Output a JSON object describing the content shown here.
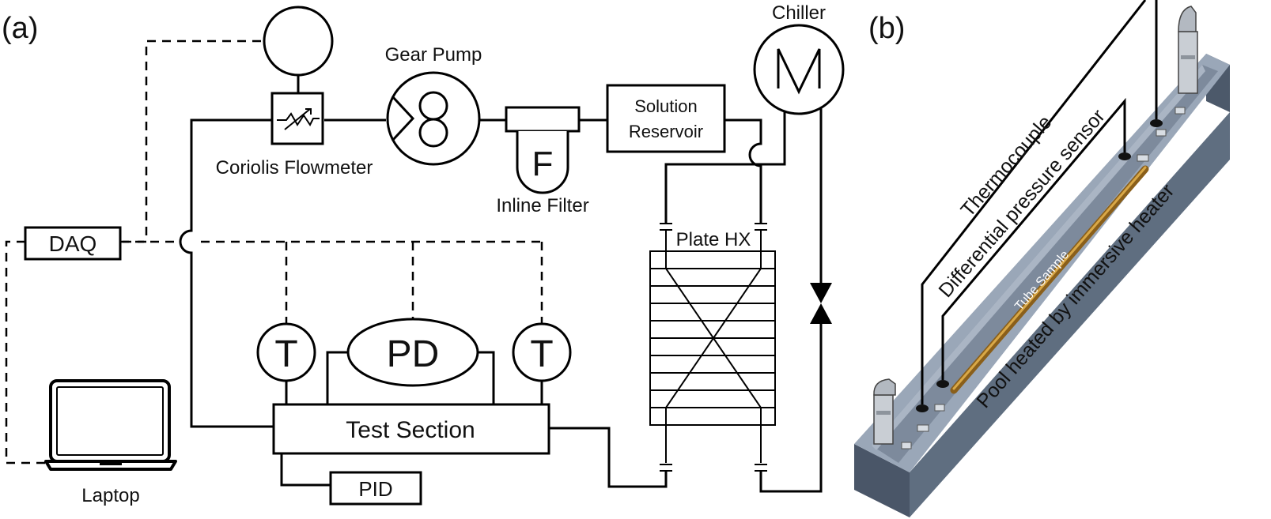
{
  "panel_a": {
    "label": "(a)",
    "components": {
      "daq": "DAQ",
      "laptop": "Laptop",
      "coriolis_flowmeter": "Coriolis Flowmeter",
      "gear_pump": "Gear Pump",
      "inline_filter": "Inline Filter",
      "filter_letter": "F",
      "solution_reservoir_line1": "Solution",
      "solution_reservoir_line2": "Reservoir",
      "chiller": "Chiller",
      "plate_hx": "Plate HX",
      "temp_sensor_left": "T",
      "temp_sensor_right": "T",
      "pressure_diff": "PD",
      "test_section": "Test Section",
      "pid": "PID"
    }
  },
  "panel_b": {
    "label": "(b)",
    "labels": {
      "thermocouple": "Thermocouple",
      "diff_pressure_sensor": "Differential pressure sensor",
      "tube_sample": "Tube Sample",
      "pool": "Pool heated by immersive heater"
    },
    "colors": {
      "trough_side": "#5f6e80",
      "trough_top": "#9aa7b8",
      "trough_inner": "#7d8a9c",
      "tube": "#b8862b"
    }
  }
}
